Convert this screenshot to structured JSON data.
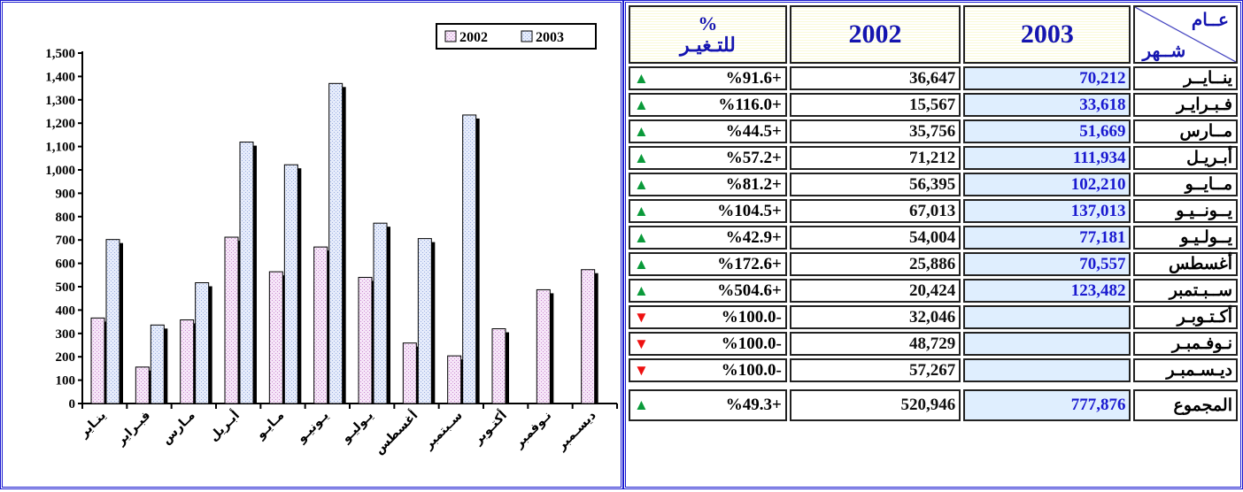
{
  "chart_data": {
    "type": "bar",
    "categories": [
      "ينـاير",
      "فبـراير",
      "مـارس",
      "أبـريل",
      "مـايـو",
      "يـونيـو",
      "يـوليـو",
      "أغسطس",
      "سـبتمبر",
      "أكتـوبر",
      "نـوفمبر",
      "ديسـمبر"
    ],
    "series": [
      {
        "name": "2002",
        "values": [
          366,
          156,
          358,
          712,
          564,
          670,
          540,
          259,
          204,
          320,
          487,
          573
        ],
        "color": "#eed7f3"
      },
      {
        "name": "2003",
        "values": [
          702,
          336,
          517,
          1119,
          1022,
          1370,
          772,
          706,
          1235,
          null,
          null,
          null
        ],
        "color": "#d4def8"
      }
    ],
    "yticks": [
      "0",
      "100",
      "200",
      "300",
      "400",
      "500",
      "600",
      "700",
      "800",
      "900",
      "1,000",
      "1,100",
      "1,200",
      "1,300",
      "1,400",
      "1,500"
    ],
    "ylim": [
      0,
      1500
    ],
    "legend_position": "top-right",
    "grid": false
  },
  "table": {
    "header": {
      "change": "%\nللتـغيـر",
      "y2002": "2002",
      "y2003": "2003",
      "corner_top": "عــام",
      "corner_bottom": "شــهر"
    },
    "rows": [
      {
        "month": "ينــايــر",
        "y2003": "70,212",
        "y2002": "36,647",
        "change": "%91.6+",
        "dir": "up"
      },
      {
        "month": "فـبـرايـر",
        "y2003": "33,618",
        "y2002": "15,567",
        "change": "%116.0+",
        "dir": "up"
      },
      {
        "month": "مــارس",
        "y2003": "51,669",
        "y2002": "35,756",
        "change": "%44.5+",
        "dir": "up"
      },
      {
        "month": "أبـريـل",
        "y2003": "111,934",
        "y2002": "71,212",
        "change": "%57.2+",
        "dir": "up"
      },
      {
        "month": "مــايــو",
        "y2003": "102,210",
        "y2002": "56,395",
        "change": "%81.2+",
        "dir": "up"
      },
      {
        "month": "يــونــيـو",
        "y2003": "137,013",
        "y2002": "67,013",
        "change": "%104.5+",
        "dir": "up"
      },
      {
        "month": "يــولـيـو",
        "y2003": "77,181",
        "y2002": "54,004",
        "change": "%42.9+",
        "dir": "up"
      },
      {
        "month": "أغسطس",
        "y2003": "70,557",
        "y2002": "25,886",
        "change": "%172.6+",
        "dir": "up"
      },
      {
        "month": "ســبـتمبر",
        "y2003": "123,482",
        "y2002": "20,424",
        "change": "%504.6+",
        "dir": "up"
      },
      {
        "month": "أكـتـوبـر",
        "y2003": "",
        "y2002": "32,046",
        "change": "%100.0-",
        "dir": "down"
      },
      {
        "month": "نـوفـمبـر",
        "y2003": "",
        "y2002": "48,729",
        "change": "%100.0-",
        "dir": "down"
      },
      {
        "month": "ديـسـمبـر",
        "y2003": "",
        "y2002": "57,267",
        "change": "%100.0-",
        "dir": "down"
      }
    ],
    "total": {
      "month": "المجموع",
      "y2003": "777,876",
      "y2002": "520,946",
      "change": "%49.3+",
      "dir": "up"
    }
  },
  "icons": {
    "up": "▲",
    "down": "▼"
  },
  "colors": {
    "accent": "#1a1ad0",
    "up": "#0a9a3a",
    "down": "#ee1010"
  }
}
